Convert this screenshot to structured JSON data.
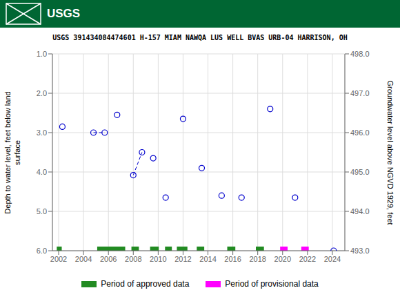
{
  "chart_data": {
    "type": "scatter",
    "title": "USGS 391434084474601 H-157 MIAM NAWQA LUS WELL BVAS URB-04 HARRISON, OH",
    "annotations": [
      {
        "text": "USGS",
        "color": "#006633"
      }
    ],
    "ylabel": "Depth to water level, feet below land\nsurface",
    "y2label": "Groundwater level above NGVD 1929, feet",
    "xlim": [
      2001.5,
      2025.0
    ],
    "xticks": [
      2002,
      2004,
      2006,
      2008,
      2010,
      2012,
      2014,
      2016,
      2018,
      2020,
      2022,
      2024
    ],
    "ylim": [
      6.0,
      1.0
    ],
    "yticks": [
      {
        "value": 1.0,
        "label": "1.0"
      },
      {
        "value": 2.0,
        "label": "2.0"
      },
      {
        "value": 3.0,
        "label": "3.0"
      },
      {
        "value": 4.0,
        "label": "4.0"
      },
      {
        "value": 5.0,
        "label": "5.0"
      },
      {
        "value": 6.0,
        "label": "6.0"
      }
    ],
    "y2lim": [
      493.0,
      498.0
    ],
    "y2ticks": [
      {
        "value": 498.0,
        "label": "498.0"
      },
      {
        "value": 497.0,
        "label": "497.0"
      },
      {
        "value": 496.0,
        "label": "496.0"
      },
      {
        "value": 495.0,
        "label": "495.0"
      },
      {
        "value": 494.0,
        "label": "494.0"
      },
      {
        "value": 493.0,
        "label": "493.0"
      }
    ],
    "grid": true,
    "legend": "bottom",
    "series": [
      {
        "type": "scatter",
        "marker": "open_circle",
        "color": "#0000CD",
        "x": [
          2002.3,
          2004.8,
          2005.7,
          2006.7,
          2008.0,
          2008.7,
          2009.6,
          2010.6,
          2012.0,
          2013.5,
          2015.1,
          2016.7,
          2019.0,
          2021.0,
          2024.1
        ],
        "values": [
          2.85,
          3.0,
          3.0,
          2.55,
          4.08,
          3.5,
          3.65,
          4.65,
          2.65,
          3.9,
          4.6,
          4.65,
          2.4,
          4.65,
          6.0
        ]
      },
      {
        "type": "line",
        "line_style": "dashed",
        "color": "#0000CD",
        "segments": [
          {
            "x": [
              2004.8,
              2005.7
            ],
            "values": [
              3.0,
              3.0
            ]
          },
          {
            "x": [
              2008.0,
              2008.7
            ],
            "values": [
              4.08,
              3.5
            ]
          }
        ]
      },
      {
        "type": "range_bar",
        "name": "Period of approved data",
        "color": "#228B22",
        "y": 6.0,
        "ranges": [
          [
            2001.85,
            2002.25
          ],
          [
            2005.1,
            2007.35
          ],
          [
            2007.85,
            2008.45
          ],
          [
            2009.35,
            2010.05
          ],
          [
            2010.55,
            2011.1
          ],
          [
            2011.5,
            2012.35
          ],
          [
            2013.1,
            2013.7
          ],
          [
            2015.55,
            2016.2
          ],
          [
            2017.85,
            2018.5
          ]
        ]
      },
      {
        "type": "range_bar",
        "name": "Period of provisional data",
        "color": "#FF00FF",
        "y": 6.0,
        "ranges": [
          [
            2019.8,
            2020.4
          ],
          [
            2021.5,
            2022.1
          ]
        ]
      }
    ]
  }
}
